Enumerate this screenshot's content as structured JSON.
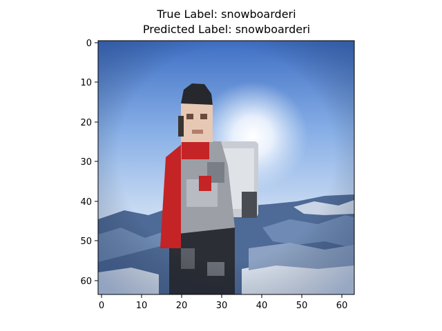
{
  "title_true": "True Label: snowboarderi",
  "title_pred": "Predicted Label: snowboarderi",
  "image": {
    "subject": "snowboarder",
    "x_ticks": [
      "0",
      "10",
      "20",
      "30",
      "40",
      "50",
      "60"
    ],
    "y_ticks": [
      "0",
      "10",
      "20",
      "30",
      "40",
      "50",
      "60"
    ],
    "pixel_grid": "64x64",
    "colors": {
      "sky_top": "#3f6fc4",
      "sky_mid": "#9cc0ea",
      "sky_low": "#dbe8f8",
      "sun": "#ffffff",
      "mountain": "#4e6a96",
      "snow": "#dde6f2",
      "jacket_red": "#c42426",
      "vest_gray": "#9c9fa6",
      "pants_dark": "#2b2e35",
      "helmet": "#26282e",
      "face": "#e7c8b4",
      "board": "#c9ccd2"
    }
  }
}
